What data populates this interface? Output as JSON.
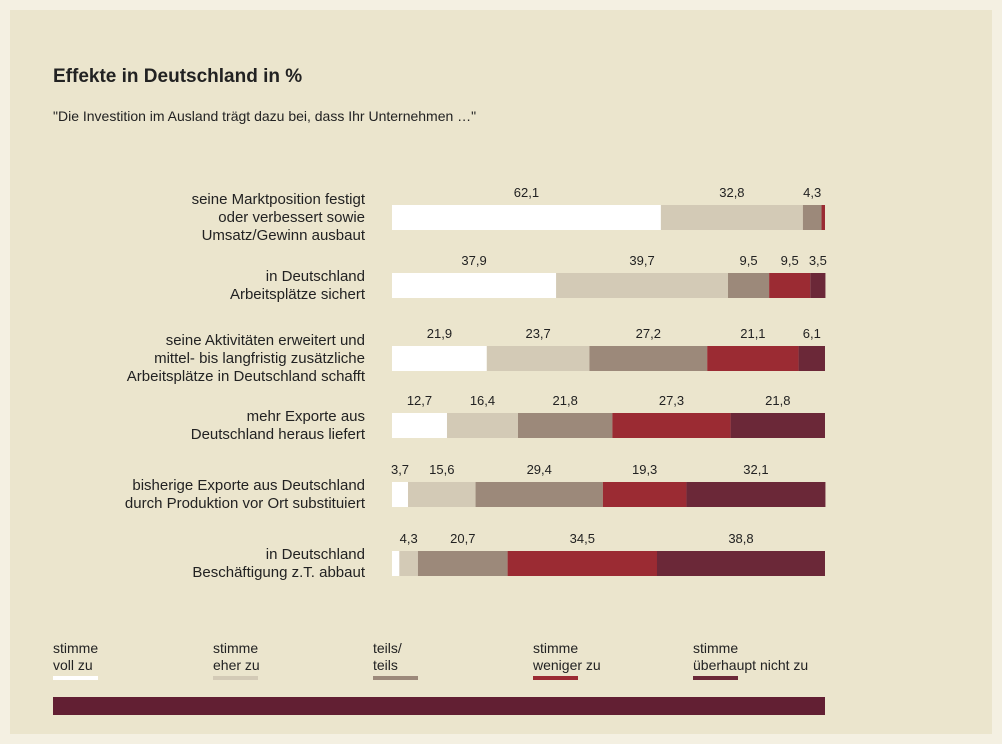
{
  "chart_data": {
    "type": "stacked-bar-horizontal",
    "title": "Effekte in Deutschland in %",
    "subtitle": "\"Die Investition im Ausland trägt dazu bei, dass Ihr Unternehmen …\"",
    "categories": [
      "seine Marktposition festigt\noder verbessert sowie\nUmsatz/Gewinn ausbaut",
      "in Deutschland\nArbeitsplätze sichert",
      "seine Aktivitäten erweitert und\nmittel- bis langfristig zusätzliche\nArbeitsplätze in Deutschland schafft",
      "mehr Exporte aus\nDeutschland heraus liefert",
      "bisherige Exporte aus Deutschland\ndurch Produktion vor Ort substituiert",
      "in Deutschland\nBeschäftigung z.T. abbaut"
    ],
    "xlim": [
      0,
      100
    ],
    "series": [
      {
        "name": "stimme\nvoll zu",
        "color": "#ffffff",
        "values": [
          62.1,
          37.9,
          21.9,
          12.7,
          3.7,
          1.7
        ],
        "value_labels": [
          "62,1",
          "37,9",
          "21,9",
          "12,7",
          "3,7",
          null
        ]
      },
      {
        "name": "stimme\neher zu",
        "color": "#d3cab6",
        "values": [
          32.8,
          39.7,
          23.7,
          16.4,
          15.6,
          4.3
        ],
        "value_labels": [
          "32,8",
          "39,7",
          "23,7",
          "16,4",
          "15,6",
          "4,3"
        ]
      },
      {
        "name": "teils/\nteils",
        "color": "#9c897a",
        "values": [
          4.3,
          9.5,
          27.2,
          21.8,
          29.4,
          20.7
        ],
        "value_labels": [
          "4,3",
          "9,5",
          "27,2",
          "21,8",
          "29,4",
          "20,7"
        ]
      },
      {
        "name": "stimme\nweniger zu",
        "color": "#9b2b33",
        "values": [
          0.8,
          9.5,
          21.1,
          27.3,
          19.3,
          34.5
        ],
        "value_labels": [
          null,
          "9,5",
          "21,1",
          "27,3",
          "19,3",
          "34,5"
        ]
      },
      {
        "name": "stimme\nüberhaupt nicht zu",
        "color": "#6b2838",
        "values": [
          0,
          3.5,
          6.1,
          21.8,
          32.1,
          38.8
        ],
        "value_labels": [
          null,
          "3,5",
          "6,1",
          "21,8",
          "32,1",
          "38,8"
        ]
      }
    ]
  }
}
